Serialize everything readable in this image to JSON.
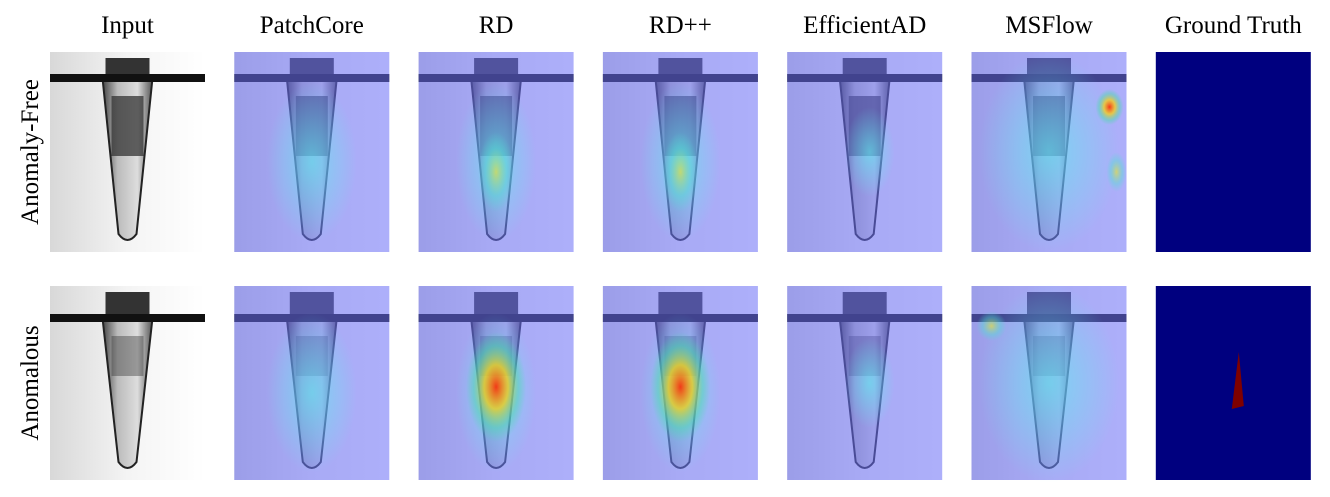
{
  "columns": [
    "Input",
    "PatchCore",
    "RD",
    "RD++",
    "EfficientAD",
    "MSFlow",
    "Ground Truth"
  ],
  "rows": [
    "Anomaly-Free",
    "Anomalous"
  ]
}
